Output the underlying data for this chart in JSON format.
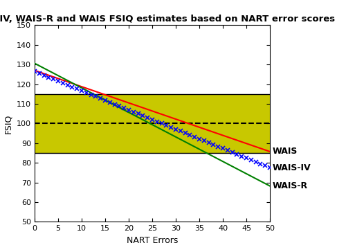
{
  "title": "WAIS-IV, WAIS-R and WAIS FSIQ estimates based on NART error scores",
  "xlabel": "NART Errors",
  "ylabel": "FSIQ",
  "xlim": [
    0,
    50
  ],
  "ylim": [
    50,
    150
  ],
  "xticks": [
    0,
    5,
    10,
    15,
    20,
    25,
    30,
    35,
    40,
    45,
    50
  ],
  "yticks": [
    50,
    60,
    70,
    80,
    90,
    100,
    110,
    120,
    130,
    140,
    150
  ],
  "wais_intercept": 127.0,
  "wais_slope": -0.826,
  "waisr_intercept": 130.6,
  "waisr_slope": -1.248,
  "waisiiv_intercept": 126.41,
  "waisiiv_slope": -0.978,
  "shade_lower": 85,
  "shade_upper": 115,
  "shade_color": "#c8c800",
  "dashed_y": 100,
  "wais_color": "red",
  "waisr_color": "green",
  "waisiiv_color": "blue",
  "waisiiv_marker": "x",
  "legend_wais": "WAIS",
  "legend_waisiiv": "WAIS-IV",
  "legend_waisr": "WAIS-R",
  "shade_border_color": "black",
  "title_fontsize": 9.5,
  "axis_label_fontsize": 9,
  "tick_fontsize": 8,
  "legend_fontsize": 9,
  "line_width": 1.5,
  "marker_size": 4,
  "figsize": [
    5.0,
    3.64
  ],
  "dpi": 100
}
